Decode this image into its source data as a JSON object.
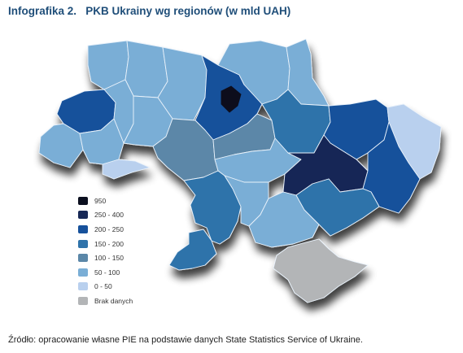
{
  "title": "Infografika 2.   PKB Ukrainy wg regionów (w mld UAH)",
  "legend": [
    {
      "label": "950",
      "color": "#0b0f1f"
    },
    {
      "label": "250 - 400",
      "color": "#172856"
    },
    {
      "label": "200 - 250",
      "color": "#16519b"
    },
    {
      "label": "150 - 200",
      "color": "#2f73aa"
    },
    {
      "label": "100 - 150",
      "color": "#5b87a8"
    },
    {
      "label": "50 - 100",
      "color": "#7aaed6"
    },
    {
      "label": "0 - 50",
      "color": "#b9d0ee"
    },
    {
      "label": "Brak danych",
      "color": "#b3b5b7"
    }
  ],
  "source": "Źródło: opracowanie własne PIE na podstawie danych State Statistics Service of Ukraine."
}
